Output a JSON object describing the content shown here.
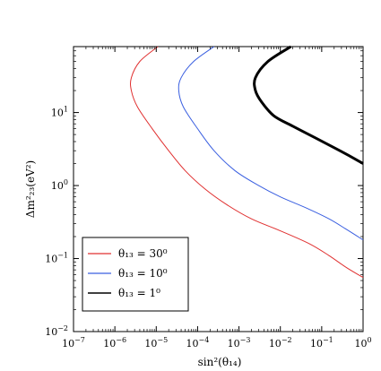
{
  "chart_data": {
    "type": "line",
    "title": "",
    "xlabel": "sin²(θ₁₄)",
    "ylabel": "Δm²₂₃(eV²)",
    "xscale": "log",
    "yscale": "log",
    "xlim": [
      1e-07,
      1
    ],
    "ylim": [
      0.01,
      80
    ],
    "grid": false,
    "legend_position": "bottom-left",
    "x_ticks": [
      {
        "value": 1e-07,
        "mantissa": "10",
        "exp": "−7"
      },
      {
        "value": 1e-06,
        "mantissa": "10",
        "exp": "−6"
      },
      {
        "value": 1e-05,
        "mantissa": "10",
        "exp": "−5"
      },
      {
        "value": 0.0001,
        "mantissa": "10",
        "exp": "−4"
      },
      {
        "value": 0.001,
        "mantissa": "10",
        "exp": "−3"
      },
      {
        "value": 0.01,
        "mantissa": "10",
        "exp": "−2"
      },
      {
        "value": 0.1,
        "mantissa": "10",
        "exp": "−1"
      },
      {
        "value": 1,
        "mantissa": "10",
        "exp": "0"
      }
    ],
    "y_ticks": [
      {
        "value": 0.01,
        "mantissa": "10",
        "exp": "−2"
      },
      {
        "value": 0.1,
        "mantissa": "10",
        "exp": "−1"
      },
      {
        "value": 1,
        "mantissa": "10",
        "exp": "0"
      },
      {
        "value": 10,
        "mantissa": "10",
        "exp": "1"
      }
    ],
    "series": [
      {
        "name": "θ₁₃ = 30⁰",
        "color": "#e03030",
        "width": 1,
        "x": [
          1.1e-05,
          4e-06,
          2.5e-06,
          2.5e-06,
          3.5e-06,
          8e-06,
          2e-05,
          5e-05,
          0.00015,
          0.0005,
          0.002,
          0.01,
          0.05,
          0.15,
          0.4,
          1
        ],
        "y": [
          80,
          50,
          30,
          20,
          12,
          6,
          3,
          1.6,
          0.9,
          0.55,
          0.35,
          0.24,
          0.16,
          0.11,
          0.075,
          0.055
        ]
      },
      {
        "name": "θ₁₃ = 10⁰",
        "color": "#3a5fe0",
        "width": 1,
        "x": [
          0.00025,
          8e-05,
          4e-05,
          3.5e-05,
          4.5e-05,
          0.0001,
          0.00025,
          0.0008,
          0.003,
          0.01,
          0.04,
          0.15,
          0.4,
          1
        ],
        "y": [
          80,
          50,
          30,
          20,
          12,
          6,
          3,
          1.6,
          1.0,
          0.7,
          0.5,
          0.35,
          0.25,
          0.18
        ]
      },
      {
        "name": "θ₁₃ = 1⁰",
        "color": "#000000",
        "width": 3,
        "x": [
          0.018,
          0.005,
          0.0025,
          0.0025,
          0.0035,
          0.007,
          0.02,
          0.07,
          0.2,
          0.5,
          1
        ],
        "y": [
          80,
          50,
          30,
          20,
          14,
          9,
          6.5,
          4.5,
          3.3,
          2.5,
          2.0
        ]
      }
    ]
  }
}
